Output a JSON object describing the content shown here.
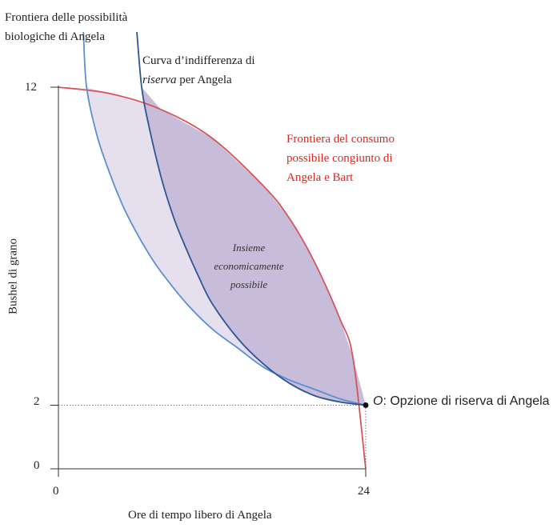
{
  "chart_data": {
    "type": "line",
    "xlabel": "Ore di tempo libero di Angela",
    "ylabel": "Bushel di grano",
    "x_ticks": [
      "0",
      "24"
    ],
    "y_ticks": [
      "0",
      "2",
      "12"
    ],
    "xlim": [
      0,
      24
    ],
    "ylim": [
      0,
      12
    ],
    "series": [
      {
        "name": "Frontiera delle possibilità biologiche di Angela",
        "color": "#5b8fd0",
        "x": [
          2.2,
          3.0,
          4.0,
          5.0,
          6.0,
          7.0,
          8.0,
          10.0,
          12.0,
          14.0,
          16.0,
          18.0,
          20.0,
          22.0,
          24.0
        ],
        "y": [
          12.0,
          10.5,
          9.3,
          8.3,
          7.5,
          6.8,
          6.2,
          5.2,
          4.4,
          3.8,
          3.2,
          2.8,
          2.5,
          2.2,
          2.0
        ]
      },
      {
        "name": "Curva d'indifferenza di riserva per Angela",
        "color": "#2d5596",
        "x": [
          6.5,
          7.0,
          8.0,
          9.0,
          10.0,
          11.0,
          12.0,
          14.0,
          16.0,
          18.0,
          20.0,
          22.0,
          24.0
        ],
        "y": [
          12.0,
          10.9,
          9.2,
          7.9,
          6.9,
          6.0,
          5.2,
          4.1,
          3.3,
          2.7,
          2.3,
          2.1,
          2.0
        ]
      },
      {
        "name": "Frontiera del consumo possibile congiunto di Angela e Bart",
        "color": "#d5555a",
        "x": [
          0,
          4,
          8,
          12,
          16,
          18,
          20,
          22,
          23,
          24
        ],
        "y": [
          12.0,
          11.8,
          11.3,
          10.4,
          8.9,
          7.9,
          6.5,
          4.7,
          3.5,
          0.0
        ]
      }
    ],
    "points": [
      {
        "label": "O",
        "x": 24,
        "y": 2
      }
    ],
    "annotations": {
      "biological_frontier": [
        "Frontiera delle possibilità",
        "biologiche di Angela"
      ],
      "indifference_curve_line1": "Curva d’indifferenza di",
      "indifference_curve_italic": "riserva",
      "indifference_curve_rest": " per Angela",
      "joint_frontier": [
        "Frontiera del consumo",
        "possibile congiunto di",
        "Angela e Bart"
      ],
      "feasible_set": [
        "Insieme",
        "economicamente",
        "possibile"
      ],
      "option_letter": "O",
      "option_text": ": Opzione di riserva di Angela"
    },
    "colors": {
      "feasible_fill": "#c7bcd9",
      "biological_fill": "#e6e0ee",
      "label_red": "#e1261c"
    },
    "grid": false
  }
}
